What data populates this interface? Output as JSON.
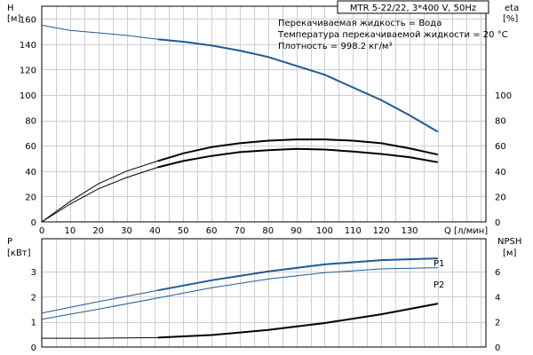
{
  "chart_data": [
    {
      "type": "line",
      "name_box": "MTR 5-22/22, 3*400 V, 50Hz",
      "annotations": [
        "Перекачиваемая жидкость = Вода",
        "Температура перекачиваемой жидкости = 20 °C",
        "Плотность = 998.2 кг/м³"
      ],
      "y_label_left": [
        "H",
        "[м]"
      ],
      "y_label_right": [
        "eta",
        "[%]"
      ],
      "xlabel": "Q [л/мин]",
      "xlim": [
        0,
        157
      ],
      "x_ticks": [
        0,
        10,
        20,
        30,
        40,
        50,
        60,
        70,
        80,
        90,
        100,
        110,
        120,
        130
      ],
      "ylim_left": [
        0,
        170
      ],
      "y_ticks_left": [
        0,
        20,
        40,
        60,
        80,
        100,
        120,
        140,
        160
      ],
      "ylim_right": [
        0,
        170
      ],
      "y_ticks_right": [
        0,
        20,
        40,
        60,
        80,
        100
      ],
      "grid": true,
      "series": [
        {
          "axis": "left",
          "color": "#1f5a96",
          "style": "dual",
          "x": [
            0,
            10,
            20,
            30,
            41,
            50,
            60,
            70,
            80,
            90,
            100,
            110,
            120,
            130,
            140
          ],
          "y": [
            155,
            151,
            149,
            147,
            144,
            142,
            139,
            135,
            130,
            123,
            116,
            106,
            96,
            84,
            71
          ]
        },
        {
          "axis": "right",
          "color": "#000000",
          "style": "dual",
          "x": [
            0,
            10,
            20,
            30,
            41,
            50,
            60,
            70,
            80,
            90,
            100,
            110,
            120,
            130,
            140
          ],
          "y": [
            0,
            16,
            30,
            40,
            48,
            54,
            59,
            62,
            64,
            65,
            65,
            64,
            62,
            58,
            53
          ]
        },
        {
          "axis": "right",
          "color": "#000000",
          "style": "dual",
          "x": [
            0,
            10,
            20,
            30,
            41,
            50,
            60,
            70,
            80,
            90,
            100,
            110,
            120,
            130,
            140
          ],
          "y": [
            0,
            14,
            26,
            35,
            43,
            48,
            52,
            55,
            56.5,
            57.5,
            57,
            55.5,
            53.5,
            51,
            47
          ]
        }
      ]
    },
    {
      "type": "line",
      "y_label_left": [
        "P",
        "[кВт]"
      ],
      "y_label_right": [
        "NPSH",
        "[м]"
      ],
      "xlim": [
        0,
        157
      ],
      "ylim_left": [
        0,
        4.3
      ],
      "y_ticks_left": [
        0,
        1,
        2,
        3
      ],
      "ylim_right": [
        0,
        8.6
      ],
      "y_ticks_right": [
        0,
        2,
        4,
        6
      ],
      "grid": true,
      "series": [
        {
          "name": "P1",
          "axis": "left",
          "color": "#1f5a96",
          "style": "dual",
          "x": [
            0,
            20,
            41,
            60,
            80,
            100,
            120,
            140
          ],
          "y": [
            1.35,
            1.8,
            2.25,
            2.65,
            3.0,
            3.28,
            3.45,
            3.52
          ]
        },
        {
          "name": "P2",
          "axis": "left",
          "color": "#1f5a96",
          "style": "single",
          "x": [
            0,
            20,
            41,
            60,
            80,
            100,
            120,
            140
          ],
          "y": [
            1.1,
            1.5,
            1.95,
            2.35,
            2.7,
            2.95,
            3.1,
            3.15
          ]
        },
        {
          "axis": "right",
          "color": "#000000",
          "style": "dual",
          "x": [
            0,
            20,
            41,
            60,
            80,
            100,
            120,
            140
          ],
          "y": [
            0.7,
            0.7,
            0.75,
            0.95,
            1.35,
            1.9,
            2.6,
            3.45
          ]
        }
      ]
    }
  ]
}
